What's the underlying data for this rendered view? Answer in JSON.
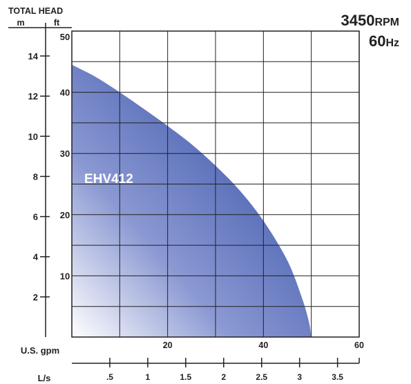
{
  "chart_data": {
    "type": "area",
    "title": "",
    "y_axis_title": "TOTAL HEAD",
    "y_left_unit": "m",
    "y_right_unit": "ft",
    "speed": {
      "rpm_value": "3450",
      "rpm_unit": "RPM",
      "hz_value": "60",
      "hz_unit": "Hz"
    },
    "series": [
      {
        "name": "EHV412",
        "color": "#4a62b2",
        "x_gpm": [
          0,
          5,
          10,
          15,
          20,
          25,
          30,
          35,
          40,
          45,
          48,
          49.5,
          50
        ],
        "y_ft": [
          44.5,
          42.5,
          40.0,
          37.3,
          34.5,
          31.5,
          28.0,
          24.0,
          19.0,
          12.5,
          6.5,
          2.5,
          0
        ]
      }
    ],
    "x_axis": {
      "unit": "U.S. gpm",
      "range": [
        0,
        60
      ],
      "ticks": [
        20,
        40,
        60
      ],
      "tick_labels": [
        "20",
        "40",
        "60"
      ],
      "grid_step": 10
    },
    "x2_axis": {
      "unit": "L/s",
      "ticks": [
        0.5,
        1,
        1.5,
        2,
        2.5,
        3,
        3.5
      ],
      "tick_labels": [
        ".5",
        "1",
        "1.5",
        "2",
        "2.5",
        "3",
        "3.5"
      ]
    },
    "y_axis_ft": {
      "range": [
        0,
        50
      ],
      "ticks": [
        10,
        20,
        30,
        40,
        50
      ],
      "tick_labels": [
        "10",
        "20",
        "30",
        "40",
        "50"
      ],
      "grid_step": 5
    },
    "y_axis_m": {
      "ticks": [
        2,
        4,
        6,
        8,
        10,
        12,
        14
      ],
      "tick_labels": [
        "2",
        "4",
        "6",
        "8",
        "10",
        "12",
        "14"
      ]
    },
    "grid": true
  }
}
